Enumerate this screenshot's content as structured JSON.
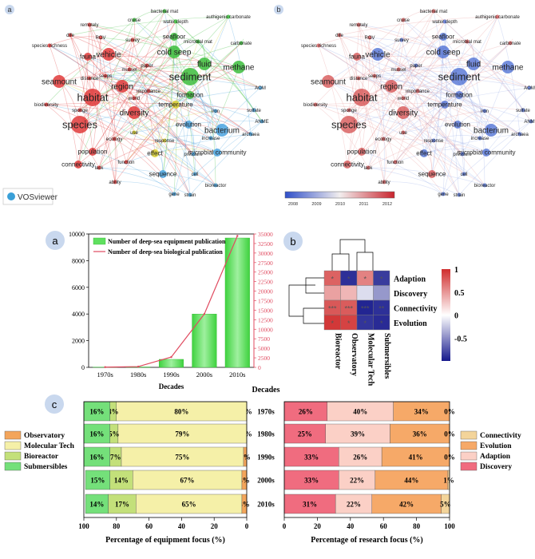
{
  "vos": {
    "panel_a_letter": "a",
    "panel_b_letter": "b",
    "logo_text": "VOSviewer",
    "colorbar_ticks": [
      "2008",
      "2009",
      "2010",
      "2011",
      "2012"
    ],
    "colors": {
      "red": "#e03a3a",
      "green": "#3cbd3c",
      "blue": "#4aa3df",
      "yellow": "#d8cf2e",
      "cold": "#3b5fcf",
      "warm": "#d24040"
    },
    "nodes": [
      {
        "t": "species",
        "cl": "red",
        "s": 3,
        "ov": "warm"
      },
      {
        "t": "habitat",
        "cl": "red",
        "s": 3,
        "ov": "warm"
      },
      {
        "t": "sediment",
        "cl": "green",
        "s": 3,
        "ov": "cold"
      },
      {
        "t": "vehicle",
        "cl": "red",
        "s": 2,
        "ov": "cold"
      },
      {
        "t": "diversity",
        "cl": "red",
        "s": 2,
        "ov": "warm"
      },
      {
        "t": "seamount",
        "cl": "red",
        "s": 2,
        "ov": "warm"
      },
      {
        "t": "region",
        "cl": "red",
        "s": 2,
        "ov": "warm"
      },
      {
        "t": "bacterium",
        "cl": "blue",
        "s": 2,
        "ov": "cold"
      },
      {
        "t": "population",
        "cl": "red",
        "s": 1,
        "ov": "warm"
      },
      {
        "t": "cold seep",
        "cl": "green",
        "s": 2,
        "ov": "cold"
      },
      {
        "t": "methane",
        "cl": "green",
        "s": 2,
        "ov": "cold"
      },
      {
        "t": "fluid",
        "cl": "green",
        "s": 2,
        "ov": "cold"
      },
      {
        "t": "temperature",
        "cl": "yellow",
        "s": 1,
        "ov": "cold"
      },
      {
        "t": "fauna",
        "cl": "red",
        "s": 1,
        "ov": "warm"
      },
      {
        "t": "seafloor",
        "cl": "green",
        "s": 1,
        "ov": "cold"
      },
      {
        "t": "connectivity",
        "cl": "red",
        "s": 1,
        "ov": "warm"
      },
      {
        "t": "effect",
        "cl": "yellow",
        "s": 1,
        "ov": "cold"
      },
      {
        "t": "sequence",
        "cl": "blue",
        "s": 1,
        "ov": "warm"
      },
      {
        "t": "formation",
        "cl": "green",
        "s": 1,
        "ov": "cold"
      },
      {
        "t": "evolution",
        "cl": "blue",
        "s": 1,
        "ov": "cold"
      },
      {
        "t": "microbial community",
        "cl": "blue",
        "s": 1,
        "ov": "cold"
      },
      {
        "t": "water depth",
        "cl": "green",
        "s": 0,
        "ov": "cold"
      },
      {
        "t": "survey",
        "cl": "red",
        "s": 0,
        "ov": "cold"
      },
      {
        "t": "carbonate",
        "cl": "green",
        "s": 0,
        "ov": "warm"
      },
      {
        "t": "ROV",
        "cl": "red",
        "s": 0,
        "ov": "warm"
      },
      {
        "t": "cruise",
        "cl": "green",
        "s": 0,
        "ov": "warm"
      },
      {
        "t": "bacterial mat",
        "cl": "green",
        "s": 0,
        "ov": "warm"
      },
      {
        "t": "authigenic carbonate",
        "cl": "green",
        "s": 0,
        "ov": "warm"
      },
      {
        "t": "remotely",
        "cl": "red",
        "s": 0,
        "ov": "warm"
      },
      {
        "t": "dife",
        "cl": "red",
        "s": 0,
        "ov": "warm"
      },
      {
        "t": "species richness",
        "cl": "red",
        "s": 0,
        "ov": "warm"
      },
      {
        "t": "microbial mat",
        "cl": "green",
        "s": 0,
        "ov": "warm"
      },
      {
        "t": "paper",
        "cl": "red",
        "s": 0,
        "ov": "cold"
      },
      {
        "t": "mussel",
        "cl": "red",
        "s": 0,
        "ov": "warm"
      },
      {
        "t": "distance",
        "cl": "red",
        "s": 0,
        "ov": "warm"
      },
      {
        "t": "seeps",
        "cl": "red",
        "s": 0,
        "ov": "warm"
      },
      {
        "t": "AOM",
        "cl": "blue",
        "s": 0,
        "ov": "cold"
      },
      {
        "t": "biodiversity",
        "cl": "red",
        "s": 0,
        "ov": "warm"
      },
      {
        "t": "importance",
        "cl": "red",
        "s": 0,
        "ov": "warm"
      },
      {
        "t": "world",
        "cl": "red",
        "s": 0,
        "ov": "warm"
      },
      {
        "t": "sponge",
        "cl": "red",
        "s": 0,
        "ov": "warm"
      },
      {
        "t": "iron",
        "cl": "blue",
        "s": 0,
        "ov": "cold"
      },
      {
        "t": "sulfate",
        "cl": "blue",
        "s": 0,
        "ov": "cold"
      },
      {
        "t": "archaea",
        "cl": "blue",
        "s": 0,
        "ov": "cold"
      },
      {
        "t": "ANME",
        "cl": "blue",
        "s": 0,
        "ov": "cold"
      },
      {
        "t": "use",
        "cl": "yellow",
        "s": 0,
        "ov": "warm"
      },
      {
        "t": "increase",
        "cl": "blue",
        "s": 0,
        "ov": "cold"
      },
      {
        "t": "ecology",
        "cl": "red",
        "s": 0,
        "ov": "warm"
      },
      {
        "t": "response",
        "cl": "yellow",
        "s": 0,
        "ov": "cold"
      },
      {
        "t": "function",
        "cl": "red",
        "s": 0,
        "ov": "warm"
      },
      {
        "t": "pressure",
        "cl": "blue",
        "s": 0,
        "ov": "cold"
      },
      {
        "t": "lack",
        "cl": "red",
        "s": 0,
        "ov": "warm"
      },
      {
        "t": "cell",
        "cl": "blue",
        "s": 0,
        "ov": "cold"
      },
      {
        "t": "bioreactor",
        "cl": "blue",
        "s": 0,
        "ov": "cold"
      },
      {
        "t": "ability",
        "cl": "red",
        "s": 0,
        "ov": "warm"
      },
      {
        "t": "gene",
        "cl": "blue",
        "s": 0,
        "ov": "cold"
      },
      {
        "t": "strain",
        "cl": "blue",
        "s": 0,
        "ov": "cold"
      }
    ]
  },
  "chart_data": [
    {
      "type": "bar",
      "panel": "a",
      "categories": [
        "1970s",
        "1980s",
        "1990s",
        "2000s",
        "2010s"
      ],
      "xlabel": "Decades",
      "series": [
        {
          "name": "Number of deep-sea equipment publication",
          "kind": "bar",
          "axis": "left",
          "values": [
            15,
            30,
            600,
            4000,
            9700
          ],
          "color": "#5fe05f"
        },
        {
          "name": "Number of deep-sea biological publication",
          "kind": "line",
          "axis": "right",
          "values": [
            50,
            200,
            2700,
            14000,
            34500
          ],
          "color": "#e04a5f"
        }
      ],
      "ylim_left": [
        0,
        10000
      ],
      "yticks_left": [
        0,
        2000,
        4000,
        6000,
        8000,
        10000
      ],
      "ylim_right": [
        0,
        35000
      ],
      "yticks_right": [
        0,
        2500,
        5000,
        7500,
        10000,
        12500,
        15000,
        17500,
        20000,
        22500,
        25000,
        27500,
        30000,
        32500,
        35000
      ]
    },
    {
      "type": "heatmap",
      "panel": "b",
      "rows": [
        "Adaption",
        "Discovery",
        "Connectivity",
        "Evolution"
      ],
      "cols": [
        "Bioreactor",
        "Observatory",
        "Molecular Tech",
        "Submersibles"
      ],
      "values": [
        [
          0.75,
          -0.9,
          0.6,
          -0.85
        ],
        [
          0.45,
          0.35,
          -0.15,
          -0.45
        ],
        [
          0.8,
          0.78,
          -0.95,
          -0.9
        ],
        [
          0.95,
          0.9,
          -0.88,
          -0.92
        ]
      ],
      "stars": [
        [
          "*",
          "*",
          "*",
          "*"
        ],
        [
          "",
          "",
          "",
          ""
        ],
        [
          "***",
          "***",
          "***",
          "**"
        ],
        [
          "*",
          "*",
          "*",
          "*"
        ]
      ],
      "colorbar_ticks": [
        1,
        0.5,
        0,
        -0.5
      ]
    },
    {
      "type": "bar",
      "panel": "c-left",
      "orientation": "horizontal-stacked",
      "categories": [
        "1970s",
        "1980s",
        "1990s",
        "2000s",
        "2010s"
      ],
      "series": [
        {
          "name": "Observatory",
          "values": [
            0,
            0,
            2,
            3,
            3
          ]
        },
        {
          "name": "Molecular Tech",
          "values": [
            80,
            79,
            75,
            67,
            65
          ]
        },
        {
          "name": "Bioreactor",
          "values": [
            4,
            5,
            7,
            14,
            17
          ]
        },
        {
          "name": "Submersibles",
          "values": [
            16,
            16,
            16,
            15,
            14
          ]
        }
      ],
      "xlabel": "Percentage of equipment focus (%)",
      "xticks": [
        100,
        80,
        60,
        40,
        20,
        0
      ]
    },
    {
      "type": "bar",
      "panel": "c-right",
      "orientation": "horizontal-stacked",
      "categories": [
        "1970s",
        "1980s",
        "1990s",
        "2000s",
        "2010s"
      ],
      "series": [
        {
          "name": "Discovery",
          "values": [
            26,
            25,
            33,
            33,
            31
          ]
        },
        {
          "name": "Adaption",
          "values": [
            40,
            39,
            26,
            22,
            22
          ]
        },
        {
          "name": "Evolution",
          "values": [
            34,
            36,
            41,
            44,
            42
          ]
        },
        {
          "name": "Connectivity",
          "values": [
            0,
            0,
            0,
            1,
            5
          ]
        }
      ],
      "xlabel": "Percentage of research focus (%)",
      "xticks": [
        0,
        20,
        40,
        60,
        80,
        100
      ]
    }
  ],
  "panel_c": {
    "letter": "c",
    "center_label": "Decades",
    "left_colors": {
      "Observatory": "#f3a55b",
      "Molecular Tech": "#f5f0a8",
      "Bioreactor": "#c3e07a",
      "Submersibles": "#74e07a"
    },
    "right_colors": {
      "Discovery": "#f06c7f",
      "Adaption": "#fbd0c6",
      "Evolution": "#f6a968",
      "Connectivity": "#f3d49a"
    },
    "left_legend_order": [
      "Observatory",
      "Molecular Tech",
      "Bioreactor",
      "Submersibles"
    ],
    "right_legend_order": [
      "Connectivity",
      "Evolution",
      "Adaption",
      "Discovery"
    ]
  }
}
